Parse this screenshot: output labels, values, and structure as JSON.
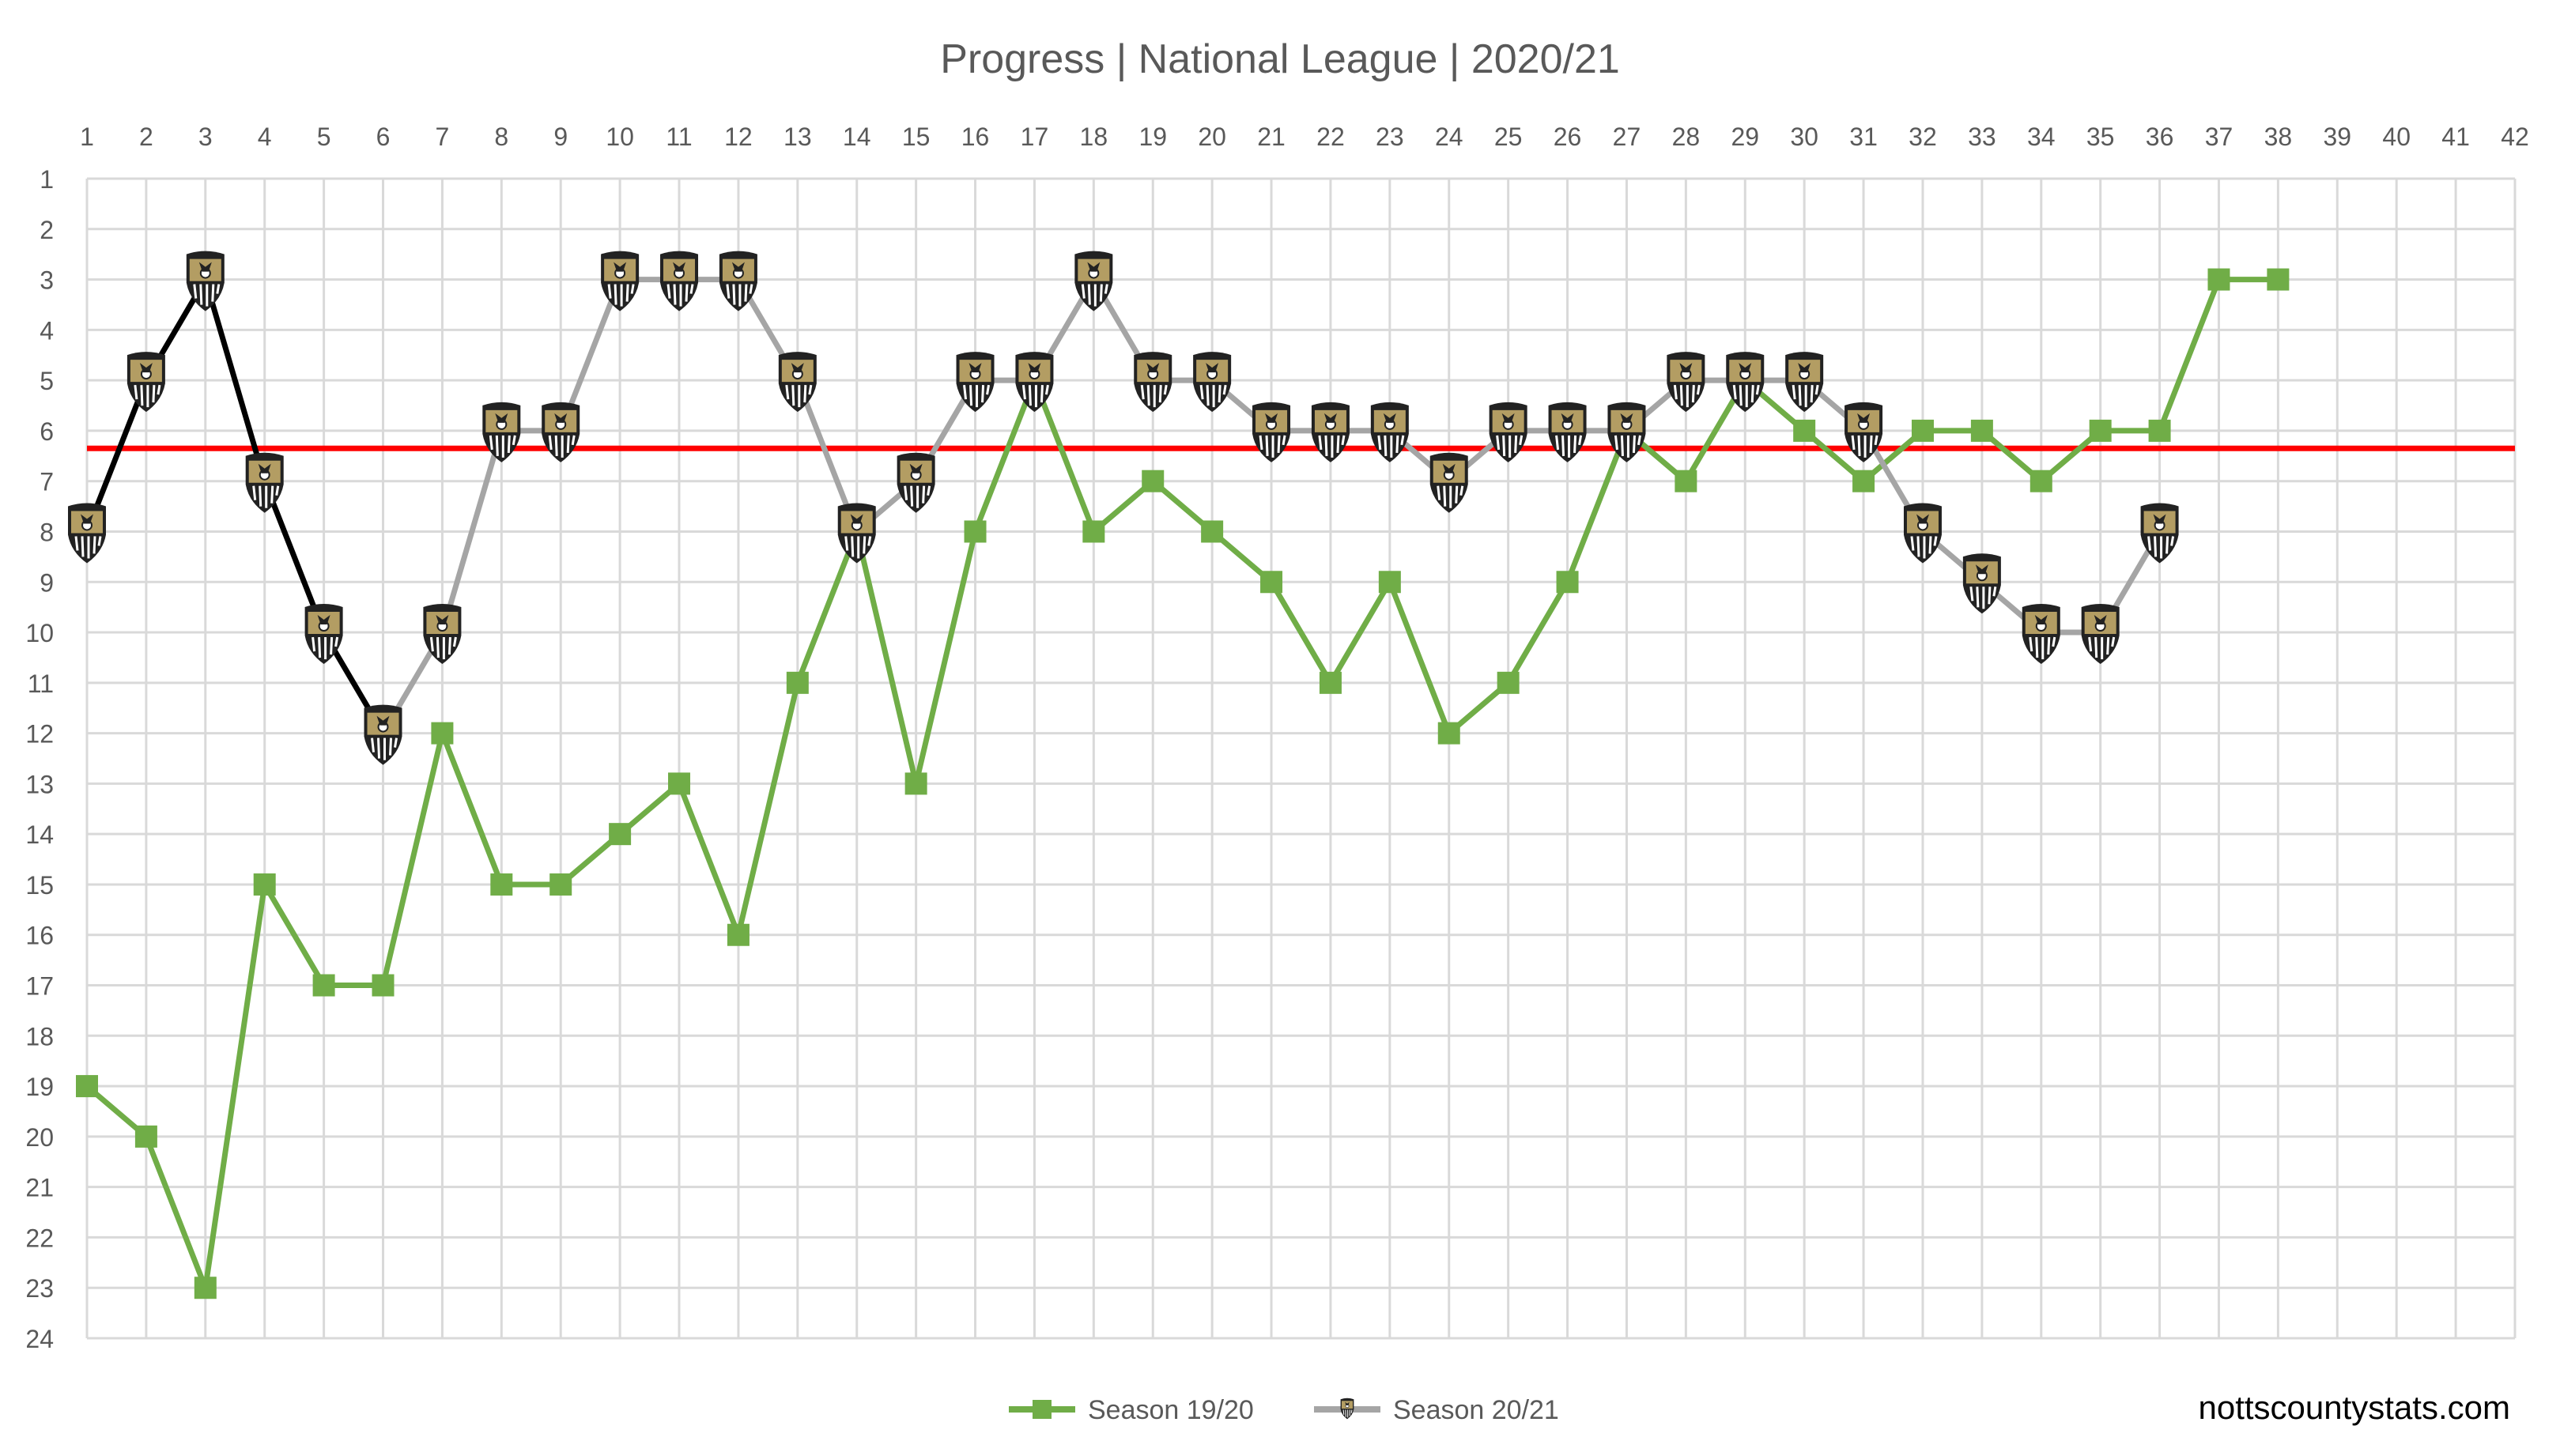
{
  "chart_data": {
    "type": "line",
    "title": "Progress | National League | 2020/21",
    "xlabel": "",
    "ylabel": "",
    "x_ticks": [
      1,
      2,
      3,
      4,
      5,
      6,
      7,
      8,
      9,
      10,
      11,
      12,
      13,
      14,
      15,
      16,
      17,
      18,
      19,
      20,
      21,
      22,
      23,
      24,
      25,
      26,
      27,
      28,
      29,
      30,
      31,
      32,
      33,
      34,
      35,
      36,
      37,
      38,
      39,
      40,
      41,
      42
    ],
    "y_ticks": [
      1,
      2,
      3,
      4,
      5,
      6,
      7,
      8,
      9,
      10,
      11,
      12,
      13,
      14,
      15,
      16,
      17,
      18,
      19,
      20,
      21,
      22,
      23,
      24
    ],
    "xlim": [
      1,
      42
    ],
    "ylim": [
      1,
      24
    ],
    "y_inverted": true,
    "grid": true,
    "legend_position": "bottom",
    "reference_line": {
      "value": 6.35,
      "color": "#ff0000"
    },
    "series": [
      {
        "name": "Season 19/20",
        "color": "#70ad47",
        "marker": "square",
        "x": [
          1,
          2,
          3,
          4,
          5,
          6,
          7,
          8,
          9,
          10,
          11,
          12,
          13,
          14,
          15,
          16,
          17,
          18,
          19,
          20,
          21,
          22,
          23,
          24,
          25,
          26,
          27,
          28,
          29,
          30,
          31,
          32,
          33,
          34,
          35,
          36,
          37,
          38
        ],
        "values": [
          19,
          20,
          23,
          15,
          17,
          17,
          12,
          15,
          15,
          14,
          13,
          16,
          11,
          8,
          13,
          8,
          5,
          8,
          7,
          8,
          9,
          11,
          9,
          12,
          11,
          9,
          6,
          7,
          5,
          6,
          7,
          6,
          6,
          7,
          6,
          6,
          3,
          3
        ]
      },
      {
        "name": "Season 20/21",
        "color": "#a5a5a5",
        "highlight_color": "#000000",
        "highlight_until_x": 6,
        "marker": "club-badge",
        "x": [
          1,
          2,
          3,
          4,
          5,
          6,
          7,
          8,
          9,
          10,
          11,
          12,
          13,
          14,
          15,
          16,
          17,
          18,
          19,
          20,
          21,
          22,
          23,
          24,
          25,
          26,
          27,
          28,
          29,
          30,
          31,
          32,
          33,
          34,
          35,
          36
        ],
        "values": [
          8,
          5,
          3,
          7,
          10,
          12,
          10,
          6,
          6,
          3,
          3,
          3,
          5,
          8,
          7,
          5,
          5,
          3,
          5,
          5,
          6,
          6,
          6,
          7,
          6,
          6,
          6,
          5,
          5,
          5,
          6,
          8,
          9,
          10,
          10,
          8
        ]
      }
    ]
  },
  "credit": "nottscountystats.com"
}
